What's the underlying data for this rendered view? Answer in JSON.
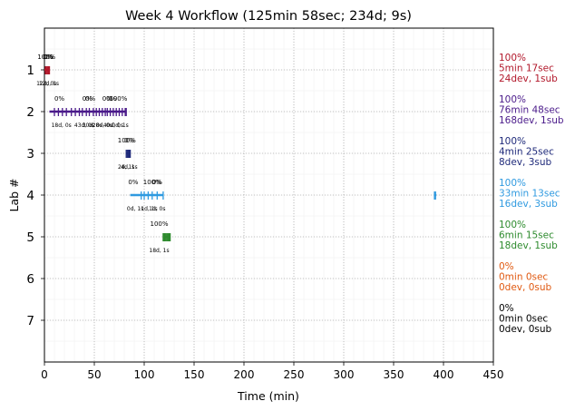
{
  "chart_data": {
    "type": "timeline",
    "title": "Week 4 Workflow (125min 58sec; 234d; 9s)",
    "xlabel": "Time (min)",
    "ylabel": "Lab #",
    "xlim": [
      0,
      450
    ],
    "ylim": [
      8,
      0
    ],
    "xticks": [
      "0",
      "50",
      "100",
      "150",
      "200",
      "250",
      "300",
      "350",
      "400",
      "450"
    ],
    "yticks": [
      "1",
      "2",
      "3",
      "4",
      "5",
      "6",
      "7"
    ],
    "grid": true,
    "labs": [
      {
        "lab": 1,
        "color": "#b2182b",
        "summary": [
          "100%",
          "5min 17sec",
          "24dev, 1sub"
        ],
        "segments": [
          [
            0,
            5.3
          ]
        ],
        "ticks": [
          1,
          2,
          3,
          4,
          5
        ],
        "pct_labels": [
          {
            "x": 2.0,
            "text": "100%"
          },
          {
            "x": 3.5,
            "text": "0%"
          },
          {
            "x": 4.5,
            "text": "0%"
          }
        ],
        "small_labels": [
          {
            "x": 2.0,
            "text": "12d, 0s"
          },
          {
            "x": 4.5,
            "text": "12d, 1s"
          }
        ]
      },
      {
        "lab": 2,
        "color": "#4a1a8a",
        "summary": [
          "100%",
          "76min 48sec",
          "168dev, 1sub"
        ],
        "segments": [
          [
            5,
            82
          ]
        ],
        "ticks": [
          10,
          14,
          18,
          22,
          27,
          31,
          35,
          38,
          42,
          45,
          49,
          52,
          55,
          58,
          61,
          63,
          66,
          69,
          72,
          75,
          78,
          81,
          82
        ],
        "pct_labels": [
          {
            "x": 15,
            "text": "0%"
          },
          {
            "x": 43,
            "text": "0%"
          },
          {
            "x": 46,
            "text": "0%"
          },
          {
            "x": 63,
            "text": "0%"
          },
          {
            "x": 67,
            "text": "0%"
          },
          {
            "x": 74,
            "text": "100%"
          }
        ],
        "small_labels": [
          {
            "x": 17,
            "text": "18d, 0s"
          },
          {
            "x": 40,
            "text": "43d, 0s"
          },
          {
            "x": 48,
            "text": "30d, 0s"
          },
          {
            "x": 58,
            "text": "28d, 0s"
          },
          {
            "x": 69,
            "text": "40d, 0s"
          },
          {
            "x": 76,
            "text": "0d, 1s"
          }
        ]
      },
      {
        "lab": 3,
        "color": "#1f2a7a",
        "summary": [
          "100%",
          "4min 25sec",
          "8dev, 3sub"
        ],
        "segments": [
          [
            82,
            86
          ]
        ],
        "ticks": [
          82,
          83,
          84,
          85,
          86
        ],
        "pct_labels": [
          {
            "x": 82.5,
            "text": "100%"
          },
          {
            "x": 85,
            "text": "0%"
          }
        ],
        "small_labels": [
          {
            "x": 82,
            "text": "2d, 1s"
          },
          {
            "x": 85,
            "text": "4d, 1s"
          }
        ]
      },
      {
        "lab": 4,
        "color": "#2f9ae0",
        "summary": [
          "100%",
          "33min 13sec",
          "16dev, 3sub"
        ],
        "segments": [
          [
            86,
            119
          ],
          [
            391,
            392
          ]
        ],
        "ticks": [
          97,
          100,
          104,
          108,
          113,
          119,
          391,
          392
        ],
        "pct_labels": [
          {
            "x": 89,
            "text": "0%"
          },
          {
            "x": 108,
            "text": "100%"
          },
          {
            "x": 113,
            "text": "0%"
          }
        ],
        "small_labels": [
          {
            "x": 91,
            "text": "0d, 1s"
          },
          {
            "x": 105,
            "text": "1d, 1s"
          },
          {
            "x": 113,
            "text": "1d, 0s"
          }
        ]
      },
      {
        "lab": 5,
        "color": "#2e8b2e",
        "summary": [
          "100%",
          "6min 15sec",
          "18dev, 1sub"
        ],
        "segments": [
          [
            119,
            126
          ]
        ],
        "ticks": [
          119,
          120,
          121,
          122,
          123,
          124,
          125,
          126
        ],
        "pct_labels": [
          {
            "x": 115,
            "text": "100%"
          }
        ],
        "small_labels": [
          {
            "x": 115,
            "text": "18d, 1s"
          }
        ]
      },
      {
        "lab": 6,
        "color": "#e05a12",
        "summary": [
          "0%",
          "0min 0sec",
          "0dev, 0sub"
        ],
        "segments": [],
        "ticks": [],
        "pct_labels": [],
        "small_labels": []
      },
      {
        "lab": 7,
        "color": "#000000",
        "summary": [
          "0%",
          "0min 0sec",
          "0dev, 0sub"
        ],
        "segments": [],
        "ticks": [],
        "pct_labels": [],
        "small_labels": []
      }
    ]
  }
}
